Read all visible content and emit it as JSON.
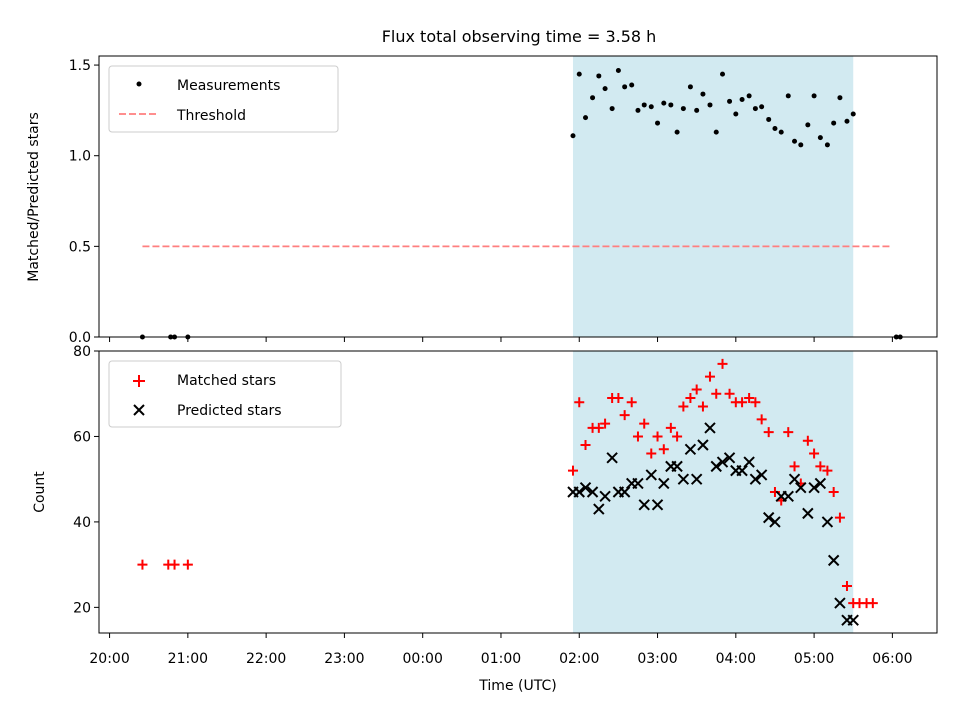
{
  "title": "Flux total observing time = 3.58 h",
  "colors": {
    "shade": "#add8e6",
    "threshold": "#ff7f7f",
    "matched": "#ff0000",
    "predicted": "#000000"
  },
  "chart_data": [
    {
      "type": "scatter",
      "panel": "top",
      "title": "Flux total observing time = 3.58 h",
      "xlabel": "",
      "ylabel": "Matched/Predicted stars",
      "xlim": [
        -0.135,
        10.57
      ],
      "ylim": [
        0,
        1.55
      ],
      "yticks": [
        0.0,
        0.5,
        1.0,
        1.5
      ],
      "ytick_labels": [
        "0.0",
        "0.5",
        "1.0",
        "1.5"
      ],
      "shaded_interval": [
        5.92,
        9.5
      ],
      "threshold": {
        "label": "Threshold",
        "value": 0.5,
        "x_start": 0.42,
        "x_end": 10.0
      },
      "legend": {
        "location": "top-left",
        "entries": [
          "Measurements",
          "Threshold"
        ]
      },
      "series": [
        {
          "name": "Measurements",
          "x": [
            0.42,
            0.78,
            0.83,
            1.0,
            5.92,
            6.0,
            6.08,
            6.17,
            6.25,
            6.33,
            6.42,
            6.5,
            6.58,
            6.67,
            6.75,
            6.83,
            6.92,
            7.0,
            7.08,
            7.17,
            7.25,
            7.33,
            7.42,
            7.5,
            7.58,
            7.67,
            7.75,
            7.83,
            7.92,
            8.0,
            8.08,
            8.17,
            8.25,
            8.33,
            8.42,
            8.5,
            8.58,
            8.67,
            8.75,
            8.83,
            8.92,
            9.0,
            9.08,
            9.17,
            9.25,
            9.33,
            9.42,
            9.5,
            10.05,
            10.1
          ],
          "y": [
            0.0,
            0.0,
            0.0,
            0.0,
            1.11,
            1.45,
            1.21,
            1.32,
            1.44,
            1.37,
            1.26,
            1.47,
            1.38,
            1.39,
            1.25,
            1.28,
            1.27,
            1.18,
            1.29,
            1.28,
            1.13,
            1.26,
            1.38,
            1.25,
            1.34,
            1.28,
            1.13,
            1.45,
            1.3,
            1.23,
            1.31,
            1.33,
            1.26,
            1.27,
            1.2,
            1.15,
            1.13,
            1.33,
            1.08,
            1.06,
            1.17,
            1.33,
            1.1,
            1.06,
            1.18,
            1.32,
            1.19,
            1.23,
            0.0,
            0.0
          ]
        }
      ]
    },
    {
      "type": "scatter",
      "panel": "bottom",
      "xlabel": "Time (UTC)",
      "ylabel": "Count",
      "xlim": [
        -0.135,
        10.57
      ],
      "ylim": [
        14,
        80
      ],
      "yticks": [
        20,
        40,
        60,
        80
      ],
      "ytick_labels": [
        "20",
        "40",
        "60",
        "80"
      ],
      "xticks": [
        0,
        1,
        2,
        3,
        4,
        5,
        6,
        7,
        8,
        9,
        10
      ],
      "xtick_labels": [
        "20:00",
        "21:00",
        "22:00",
        "23:00",
        "00:00",
        "01:00",
        "02:00",
        "03:00",
        "04:00",
        "05:00",
        "06:00"
      ],
      "shaded_interval": [
        5.92,
        9.5
      ],
      "legend": {
        "location": "top-left",
        "entries": [
          "Matched stars",
          "Predicted stars"
        ]
      },
      "series": [
        {
          "name": "Matched stars",
          "marker": "+",
          "x": [
            0.42,
            0.75,
            0.83,
            1.0,
            5.92,
            6.0,
            6.08,
            6.17,
            6.25,
            6.33,
            6.42,
            6.5,
            6.58,
            6.67,
            6.75,
            6.83,
            6.92,
            7.0,
            7.08,
            7.17,
            7.25,
            7.33,
            7.42,
            7.5,
            7.58,
            7.67,
            7.75,
            7.83,
            7.92,
            8.0,
            8.08,
            8.17,
            8.25,
            8.33,
            8.42,
            8.5,
            8.58,
            8.67,
            8.75,
            8.83,
            8.92,
            9.0,
            9.08,
            9.17,
            9.25,
            9.33,
            9.42,
            9.5,
            9.58,
            9.67,
            9.75
          ],
          "y": [
            30,
            30,
            30,
            30,
            52,
            68,
            58,
            62,
            62,
            63,
            69,
            69,
            65,
            68,
            60,
            63,
            56,
            60,
            57,
            62,
            60,
            67,
            69,
            71,
            67,
            74,
            70,
            77,
            70,
            68,
            68,
            69,
            68,
            64,
            61,
            47,
            45,
            61,
            53,
            49,
            59,
            56,
            53,
            52,
            47,
            41,
            25,
            21,
            21,
            21,
            21
          ]
        },
        {
          "name": "Predicted stars",
          "marker": "x",
          "x": [
            5.92,
            6.0,
            6.08,
            6.17,
            6.25,
            6.33,
            6.42,
            6.5,
            6.58,
            6.67,
            6.75,
            6.83,
            6.92,
            7.0,
            7.08,
            7.17,
            7.25,
            7.33,
            7.42,
            7.5,
            7.58,
            7.67,
            7.75,
            7.83,
            7.92,
            8.0,
            8.08,
            8.17,
            8.25,
            8.33,
            8.42,
            8.5,
            8.58,
            8.67,
            8.75,
            8.83,
            8.92,
            9.0,
            9.08,
            9.17,
            9.25,
            9.33,
            9.42,
            9.5
          ],
          "y": [
            47,
            47,
            48,
            47,
            43,
            46,
            55,
            47,
            47,
            49,
            49,
            44,
            51,
            44,
            49,
            53,
            53,
            50,
            57,
            50,
            58,
            62,
            53,
            54,
            55,
            52,
            52,
            54,
            50,
            51,
            41,
            40,
            46,
            46,
            50,
            48,
            42,
            48,
            49,
            40,
            31,
            21,
            17,
            17
          ]
        }
      ]
    }
  ]
}
